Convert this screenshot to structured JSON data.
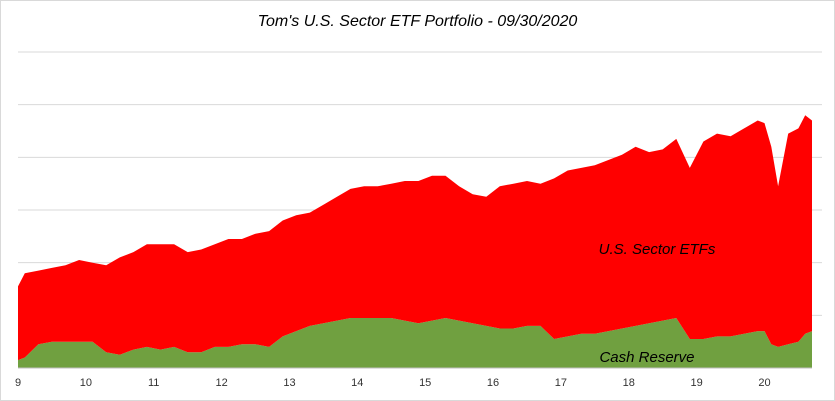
{
  "chart_data": {
    "type": "area",
    "title": "Tom's U.S. Sector ETF Portfolio - 09/30/2020",
    "stacked": true,
    "xlabel": "",
    "ylabel": "",
    "xlim": [
      9,
      20.7
    ],
    "ylim": [
      0,
      6
    ],
    "grid": true,
    "x_ticks": [
      "9",
      "10",
      "11",
      "12",
      "13",
      "14",
      "15",
      "16",
      "17",
      "18",
      "19",
      "20"
    ],
    "x": [
      9.0,
      9.1,
      9.3,
      9.5,
      9.7,
      9.9,
      10.1,
      10.3,
      10.5,
      10.7,
      10.9,
      11.1,
      11.3,
      11.5,
      11.7,
      11.9,
      12.1,
      12.3,
      12.5,
      12.7,
      12.9,
      13.1,
      13.3,
      13.5,
      13.7,
      13.9,
      14.1,
      14.3,
      14.5,
      14.7,
      14.9,
      15.1,
      15.3,
      15.5,
      15.7,
      15.9,
      16.1,
      16.3,
      16.5,
      16.7,
      16.9,
      17.1,
      17.3,
      17.5,
      17.7,
      17.9,
      18.1,
      18.3,
      18.5,
      18.7,
      18.9,
      19.1,
      19.3,
      19.5,
      19.7,
      19.9,
      20.0,
      20.1,
      20.2,
      20.35,
      20.5,
      20.6,
      20.7
    ],
    "series": [
      {
        "name": "Cash Reserve",
        "color": "#70a040",
        "values": [
          0.15,
          0.2,
          0.45,
          0.5,
          0.5,
          0.5,
          0.5,
          0.3,
          0.25,
          0.35,
          0.4,
          0.35,
          0.4,
          0.3,
          0.3,
          0.4,
          0.4,
          0.45,
          0.45,
          0.4,
          0.6,
          0.7,
          0.8,
          0.85,
          0.9,
          0.95,
          0.95,
          0.95,
          0.95,
          0.9,
          0.85,
          0.9,
          0.95,
          0.9,
          0.85,
          0.8,
          0.75,
          0.75,
          0.8,
          0.8,
          0.55,
          0.6,
          0.65,
          0.65,
          0.7,
          0.75,
          0.8,
          0.85,
          0.9,
          0.95,
          0.55,
          0.55,
          0.6,
          0.6,
          0.65,
          0.7,
          0.7,
          0.45,
          0.4,
          0.45,
          0.5,
          0.65,
          0.7
        ]
      },
      {
        "name": "U.S. Sector ETFs",
        "color": "#ff0000",
        "values": [
          1.4,
          1.6,
          1.4,
          1.4,
          1.45,
          1.55,
          1.5,
          1.65,
          1.85,
          1.85,
          1.95,
          2.0,
          1.95,
          1.9,
          1.95,
          1.95,
          2.05,
          2.0,
          2.1,
          2.2,
          2.2,
          2.2,
          2.15,
          2.25,
          2.35,
          2.45,
          2.5,
          2.5,
          2.55,
          2.65,
          2.7,
          2.75,
          2.7,
          2.55,
          2.45,
          2.45,
          2.7,
          2.75,
          2.75,
          2.7,
          3.05,
          3.15,
          3.15,
          3.2,
          3.25,
          3.3,
          3.4,
          3.25,
          3.25,
          3.4,
          3.25,
          3.75,
          3.85,
          3.8,
          3.9,
          4.0,
          3.95,
          3.75,
          3.05,
          4.0,
          4.05,
          4.15,
          4.0
        ]
      }
    ],
    "annotations": [
      "U.S. Sector ETFs",
      "Cash Reserve"
    ]
  }
}
